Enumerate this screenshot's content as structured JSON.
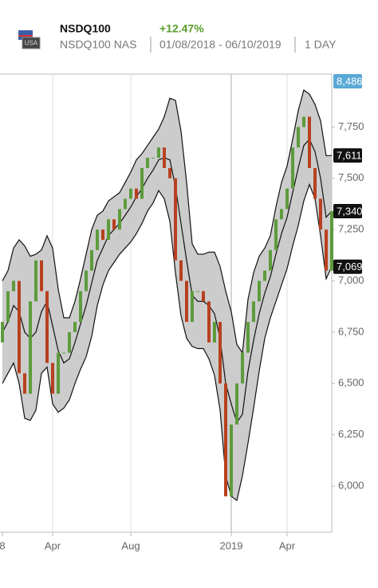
{
  "header": {
    "symbol": "NSDQ100",
    "exchange": "NSDQ100 NAS",
    "change": "+12.47%",
    "range": "01/08/2018 - 06/10/2019",
    "interval": "1 DAY",
    "flag": "USA"
  },
  "chart_data": {
    "type": "candlestick",
    "categories": [
      "8",
      null,
      null,
      null,
      null,
      null,
      null,
      null,
      null,
      "Apr",
      null,
      null,
      null,
      null,
      null,
      null,
      null,
      null,
      null,
      null,
      null,
      null,
      null,
      "Aug",
      null,
      null,
      null,
      null,
      null,
      null,
      null,
      null,
      null,
      null,
      null,
      null,
      null,
      null,
      null,
      null,
      null,
      "2019",
      null,
      null,
      null,
      null,
      null,
      null,
      null,
      null,
      null,
      "Apr",
      null,
      null,
      null,
      null,
      null,
      null,
      null,
      null
    ],
    "open": [
      6700,
      6800,
      6950,
      7000,
      6550,
      6450,
      6900,
      7100,
      6950,
      6600,
      6450,
      6650,
      6650,
      6750,
      6800,
      6950,
      7050,
      7150,
      7250,
      7200,
      7300,
      7250,
      7350,
      7400,
      7450,
      7400,
      7550,
      7600,
      7600,
      7650,
      7550,
      7500,
      7100,
      7000,
      6800,
      6950,
      6950,
      6900,
      6700,
      6800,
      6500,
      5950,
      6300,
      6500,
      6650,
      6800,
      6900,
      7000,
      7050,
      7150,
      7300,
      7350,
      7450,
      7650,
      7750,
      7800,
      7550,
      7400,
      7250,
      7050
    ],
    "close": [
      6800,
      6950,
      7000,
      6550,
      6450,
      6900,
      7100,
      6950,
      6600,
      6450,
      6650,
      6650,
      6750,
      6800,
      6950,
      7050,
      7150,
      7250,
      7200,
      7300,
      7250,
      7350,
      7400,
      7450,
      7400,
      7550,
      7600,
      7600,
      7650,
      7550,
      7500,
      7100,
      7000,
      6800,
      6950,
      6950,
      6900,
      6700,
      6800,
      6500,
      5950,
      6300,
      6500,
      6650,
      6800,
      6900,
      7000,
      7050,
      7150,
      7300,
      7350,
      7450,
      7650,
      7750,
      7800,
      7550,
      7400,
      7250,
      7050,
      7340
    ],
    "upper_band": [
      7000,
      7050,
      7160,
      7200,
      7170,
      7120,
      7130,
      7150,
      7220,
      7160,
      6960,
      6820,
      6820,
      6900,
      7010,
      7130,
      7250,
      7320,
      7340,
      7390,
      7410,
      7430,
      7480,
      7530,
      7590,
      7620,
      7660,
      7700,
      7740,
      7800,
      7890,
      7880,
      7730,
      7480,
      7180,
      7130,
      7130,
      7140,
      7140,
      7070,
      6950,
      6850,
      6690,
      6650,
      6910,
      7040,
      7120,
      7160,
      7220,
      7360,
      7480,
      7560,
      7690,
      7830,
      7930,
      7910,
      7860,
      7780,
      7610,
      7611
    ],
    "middle_band": [
      6750,
      6800,
      6880,
      6850,
      6750,
      6720,
      6750,
      6850,
      6900,
      6780,
      6660,
      6600,
      6620,
      6700,
      6790,
      6880,
      6990,
      7100,
      7160,
      7220,
      7250,
      7280,
      7320,
      7360,
      7410,
      7450,
      7500,
      7540,
      7590,
      7600,
      7590,
      7460,
      7280,
      7100,
      6930,
      6900,
      6900,
      6880,
      6840,
      6720,
      6500,
      6400,
      6310,
      6350,
      6560,
      6710,
      6840,
      6940,
      7020,
      7130,
      7230,
      7310,
      7430,
      7550,
      7660,
      7690,
      7630,
      7500,
      7310,
      7340
    ],
    "lower_band": [
      6500,
      6550,
      6600,
      6500,
      6330,
      6320,
      6370,
      6550,
      6580,
      6400,
      6360,
      6380,
      6420,
      6500,
      6570,
      6630,
      6730,
      6880,
      6980,
      7050,
      7090,
      7130,
      7160,
      7190,
      7230,
      7280,
      7340,
      7380,
      7440,
      7400,
      7290,
      7040,
      6830,
      6720,
      6680,
      6670,
      6670,
      6620,
      6540,
      6370,
      6050,
      5950,
      5930,
      6050,
      6210,
      6380,
      6560,
      6720,
      6820,
      6900,
      6980,
      7060,
      7170,
      7270,
      7390,
      7470,
      7400,
      7220,
      7010,
      7069
    ],
    "up_color": "#5d9b3c",
    "down_color": "#b8401f",
    "band_color": "#cccccc",
    "ylim": [
      5775,
      8000
    ],
    "yticks": [
      {
        "value": 6000,
        "label": "6,000"
      },
      {
        "value": 6250,
        "label": "6,250"
      },
      {
        "value": 6500,
        "label": "6,500"
      },
      {
        "value": 6750,
        "label": "6,750"
      },
      {
        "value": 7000,
        "label": "7,000"
      },
      {
        "value": 7250,
        "label": "7,250"
      },
      {
        "value": 7500,
        "label": "7,500"
      },
      {
        "value": 7750,
        "label": "7,750"
      }
    ],
    "badges": [
      {
        "value": 8486,
        "label": "8,486",
        "color": "#5aa9d6"
      },
      {
        "value": 7611,
        "label": "7,611",
        "color": "#111111"
      },
      {
        "value": 7340,
        "label": "7,340",
        "color": "#111111"
      },
      {
        "value": 7069,
        "label": "7,069",
        "color": "#111111"
      }
    ]
  }
}
